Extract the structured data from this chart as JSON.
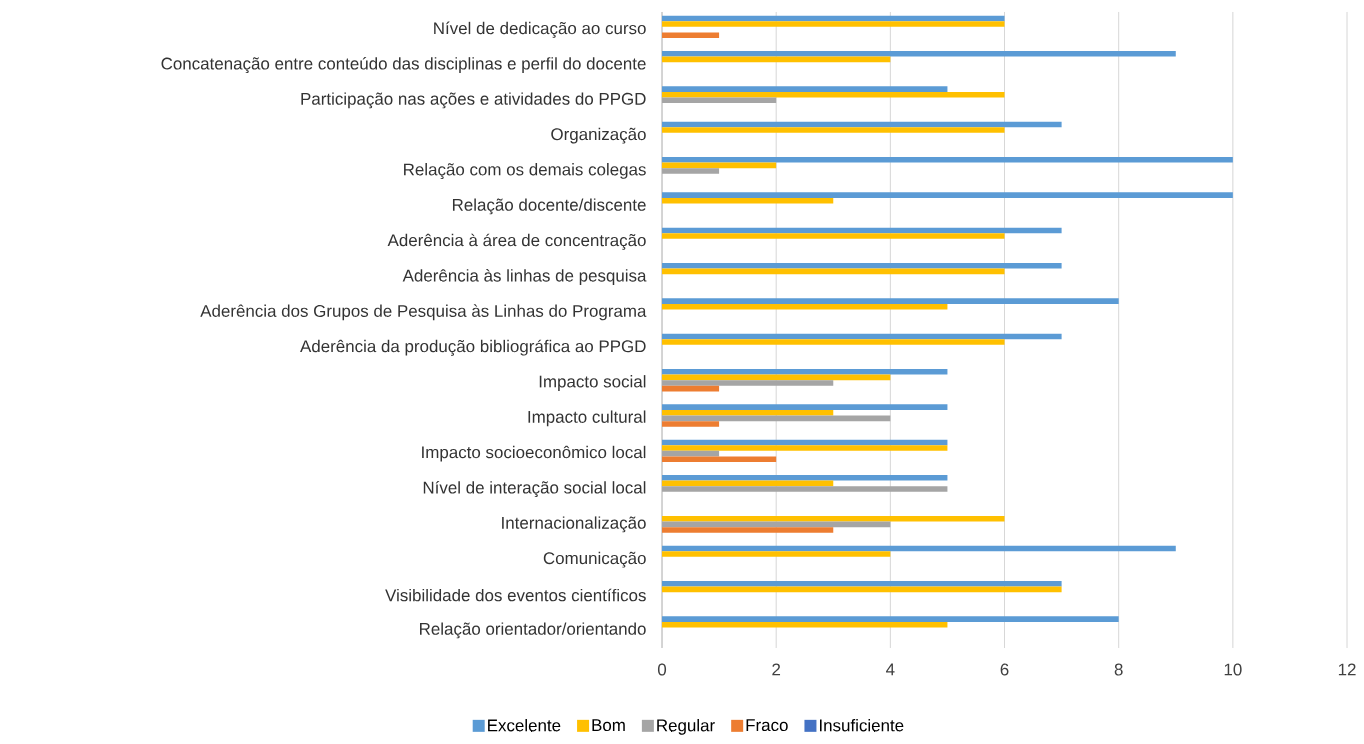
{
  "chart_data": {
    "type": "bar",
    "orientation": "horizontal",
    "categories": [
      "Nível de dedicação ao curso",
      "Concatenação entre conteúdo das disciplinas e perfil do docente",
      "Participação nas ações e atividades do PPGD",
      "Organização",
      "Relação com os demais colegas",
      "Relação docente/discente",
      "Aderência à área de concentração",
      "Aderência às linhas de pesquisa",
      "Aderência dos Grupos de Pesquisa às Linhas do Programa",
      "Aderência da produção bibliográfica ao PPGD",
      "Impacto social",
      "Impacto cultural",
      "Impacto socioeconômico local",
      "Nível de interação social local",
      "Internacionalização",
      "Comunicação",
      "Visibilidade dos eventos científicos",
      "Relação orientador/orientando"
    ],
    "series": [
      {
        "name": "Excelente",
        "color": "#5b9bd5",
        "values": [
          6,
          9,
          5,
          7,
          10,
          10,
          7,
          7,
          8,
          7,
          5,
          5,
          5,
          5,
          0,
          9,
          7,
          8
        ]
      },
      {
        "name": "Bom",
        "color": "#ffc000",
        "values": [
          6,
          4,
          6,
          6,
          2,
          3,
          6,
          6,
          5,
          6,
          4,
          3,
          5,
          3,
          6,
          4,
          7,
          5
        ]
      },
      {
        "name": "Regular",
        "color": "#a5a5a5",
        "values": [
          0,
          0,
          2,
          0,
          1,
          0,
          0,
          0,
          0,
          0,
          3,
          4,
          1,
          5,
          4,
          0,
          0,
          0
        ]
      },
      {
        "name": "Fraco",
        "color": "#ed7d31",
        "values": [
          1,
          0,
          0,
          0,
          0,
          0,
          0,
          0,
          0,
          0,
          1,
          1,
          2,
          0,
          3,
          0,
          0,
          0
        ]
      },
      {
        "name": "Insuficiente",
        "color": "#4472c4",
        "values": [
          0,
          0,
          0,
          0,
          0,
          0,
          0,
          0,
          0,
          0,
          0,
          0,
          0,
          0,
          0,
          0,
          0,
          0
        ]
      }
    ],
    "xlim": [
      0,
      12
    ],
    "xticks": [
      0,
      2,
      4,
      6,
      8,
      10,
      12
    ],
    "grid": "x",
    "legend": "bottom"
  }
}
